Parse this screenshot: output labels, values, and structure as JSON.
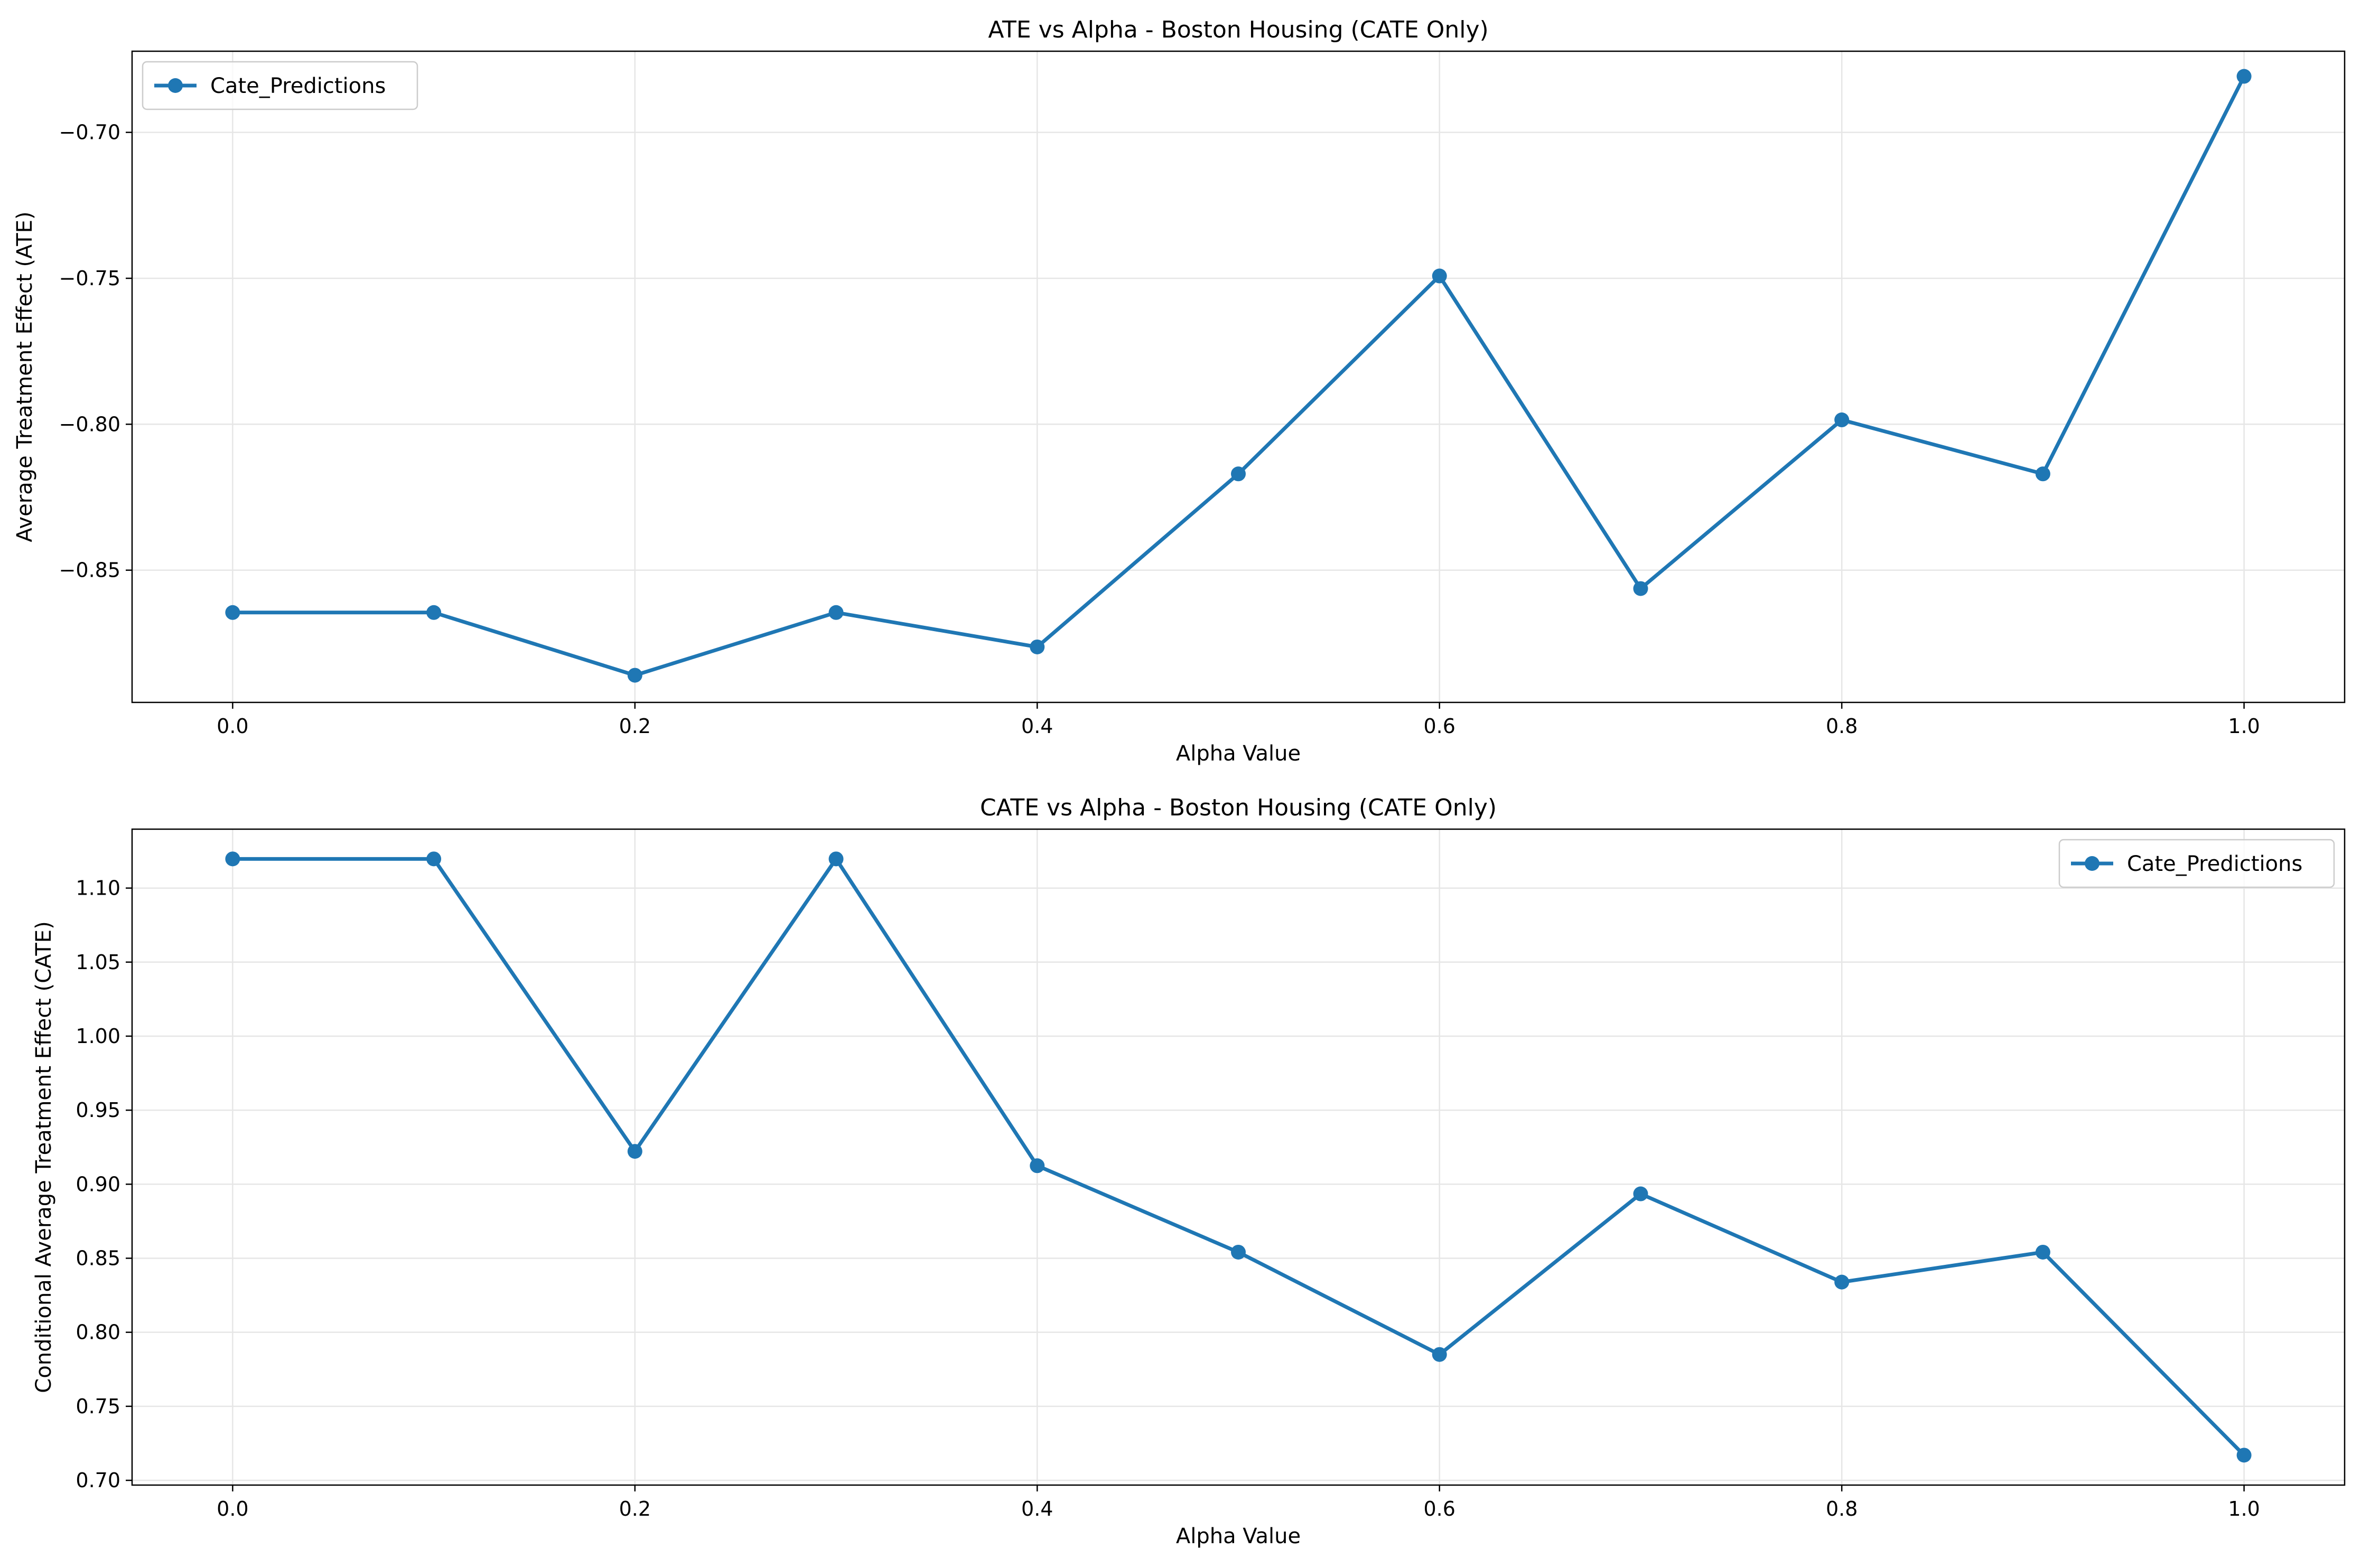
{
  "colors": {
    "series": "#1f77b4",
    "grid": "#e6e6e6",
    "axes": "#000000",
    "legend_border": "#cccccc"
  },
  "chart_data": [
    {
      "type": "line",
      "title": "ATE vs Alpha - Boston Housing (CATE Only)",
      "xlabel": "Alpha Value",
      "ylabel": "Average Treatment Effect (ATE)",
      "xlim": [
        -0.05,
        1.05
      ],
      "ylim": [
        -0.8953,
        -0.6722
      ],
      "xticks": [
        0.0,
        0.2,
        0.4,
        0.6,
        0.8,
        1.0
      ],
      "xtick_labels": [
        "0.0",
        "0.2",
        "0.4",
        "0.6",
        "0.8",
        "1.0"
      ],
      "yticks": [
        -0.85,
        -0.8,
        -0.75,
        -0.7
      ],
      "ytick_labels": [
        "−0.85",
        "−0.80",
        "−0.75",
        "−0.70"
      ],
      "grid": true,
      "legend_position": "upper-left",
      "series": [
        {
          "name": "Cate_Predictions",
          "x": [
            0.0,
            0.1,
            0.2,
            0.3,
            0.4,
            0.5,
            0.6,
            0.7,
            0.8,
            0.9,
            1.0
          ],
          "y": [
            -0.8645,
            -0.8645,
            -0.886,
            -0.8645,
            -0.8763,
            -0.817,
            -0.7492,
            -0.8563,
            -0.7985,
            -0.817,
            -0.6808
          ]
        }
      ]
    },
    {
      "type": "line",
      "title": "CATE vs Alpha - Boston Housing (CATE Only)",
      "xlabel": "Alpha Value",
      "ylabel": "Conditional Average Treatment Effect (CATE)",
      "xlim": [
        -0.05,
        1.05
      ],
      "ylim": [
        0.6968,
        1.1398
      ],
      "xticks": [
        0.0,
        0.2,
        0.4,
        0.6,
        0.8,
        1.0
      ],
      "xtick_labels": [
        "0.0",
        "0.2",
        "0.4",
        "0.6",
        "0.8",
        "1.0"
      ],
      "yticks": [
        0.7,
        0.75,
        0.8,
        0.85,
        0.9,
        0.95,
        1.0,
        1.05,
        1.1
      ],
      "ytick_labels": [
        "0.70",
        "0.75",
        "0.80",
        "0.85",
        "0.90",
        "0.95",
        "1.00",
        "1.05",
        "1.10"
      ],
      "grid": true,
      "legend_position": "upper-right",
      "series": [
        {
          "name": "Cate_Predictions",
          "x": [
            0.0,
            0.1,
            0.2,
            0.3,
            0.4,
            0.5,
            0.6,
            0.7,
            0.8,
            0.9,
            1.0
          ],
          "y": [
            1.1197,
            1.1197,
            0.9222,
            1.1197,
            0.9125,
            0.8541,
            0.785,
            0.8935,
            0.8339,
            0.8541,
            0.717
          ]
        }
      ]
    }
  ]
}
